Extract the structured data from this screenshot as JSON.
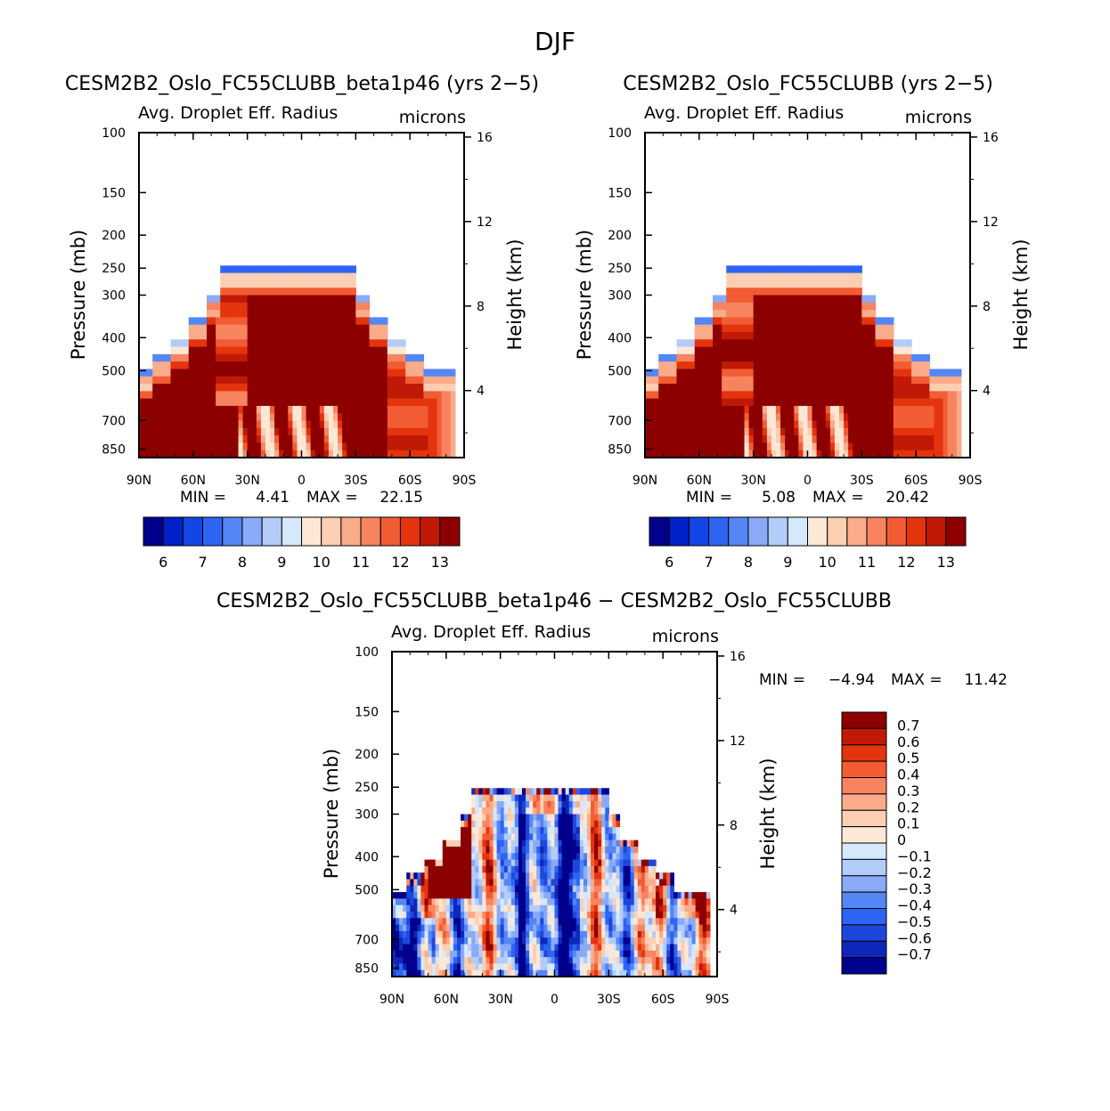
{
  "page": {
    "title": "DJF"
  },
  "colors": {
    "abs_palette": [
      "#00008c",
      "#0020c8",
      "#1446e6",
      "#2e64f4",
      "#5586f6",
      "#8aaaf8",
      "#b4ccfa",
      "#d6e8fc",
      "#fde8d6",
      "#fccfb2",
      "#faab8a",
      "#f7845f",
      "#f25c34",
      "#e4340e",
      "#c01a06",
      "#8c0000"
    ],
    "diff_palette": [
      "#00008c",
      "#0d28b8",
      "#1f46dc",
      "#2e64f4",
      "#5586f6",
      "#8aaaf8",
      "#b4ccfa",
      "#d6e8fc",
      "#fde8d6",
      "#fccfb2",
      "#faab8a",
      "#f7845f",
      "#f25c34",
      "#e4340e",
      "#c01a06",
      "#8c0000"
    ]
  },
  "chart_data": [
    {
      "type": "heatmap",
      "id": "top-left",
      "title": "CESM2B2_Oslo_FC55CLUBB_beta1p46 (yrs 2−5)",
      "subtitle_left": "Avg. Droplet Eff. Radius",
      "subtitle_right": "microns",
      "ylabel": "Pressure (mb)",
      "ylabel_right": "Height (km)",
      "x_ticks": [
        "90N",
        "60N",
        "30N",
        "0",
        "30S",
        "60S",
        "90S"
      ],
      "y_ticks": [
        "100",
        "150",
        "200",
        "250",
        "300",
        "400",
        "500",
        "700",
        "850"
      ],
      "y_right_ticks": [
        "16",
        "12",
        "8",
        "4"
      ],
      "min_label": "MIN =",
      "min_value": "4.41",
      "max_label": "MAX =",
      "max_value": "22.15",
      "colorbar_labels": [
        "6",
        "7",
        "8",
        "9",
        "10",
        "11",
        "12",
        "13"
      ],
      "colorbar_orientation": "horizontal",
      "levels": [
        5.5,
        6,
        6.5,
        7,
        7.5,
        8,
        8.5,
        9,
        9.5,
        10,
        10.5,
        11,
        11.5,
        12,
        12.5,
        13
      ],
      "field_description": "large saturated region (>13) in mid-troposphere tropics-subtropics, cloud top decreasing to blue (6-9) near 250mb, lighter values near south pole lower levels"
    },
    {
      "type": "heatmap",
      "id": "top-right",
      "title": "CESM2B2_Oslo_FC55CLUBB (yrs 2−5)",
      "subtitle_left": "Avg. Droplet Eff. Radius",
      "subtitle_right": "microns",
      "ylabel": "Pressure (mb)",
      "ylabel_right": "Height (km)",
      "x_ticks": [
        "90N",
        "60N",
        "30N",
        "0",
        "30S",
        "60S",
        "90S"
      ],
      "y_ticks": [
        "100",
        "150",
        "200",
        "250",
        "300",
        "400",
        "500",
        "700",
        "850"
      ],
      "y_right_ticks": [
        "16",
        "12",
        "8",
        "4"
      ],
      "min_label": "MIN =",
      "min_value": "5.08",
      "max_label": "MAX =",
      "max_value": "20.42",
      "colorbar_labels": [
        "6",
        "7",
        "8",
        "9",
        "10",
        "11",
        "12",
        "13"
      ],
      "colorbar_orientation": "horizontal",
      "levels": [
        5.5,
        6,
        6.5,
        7,
        7.5,
        8,
        8.5,
        9,
        9.5,
        10,
        10.5,
        11,
        11.5,
        12,
        12.5,
        13
      ]
    },
    {
      "type": "heatmap",
      "id": "bottom",
      "title": "CESM2B2_Oslo_FC55CLUBB_beta1p46 − CESM2B2_Oslo_FC55CLUBB",
      "subtitle_left": "Avg. Droplet Eff. Radius",
      "subtitle_right": "microns",
      "ylabel": "Pressure (mb)",
      "ylabel_right": "Height (km)",
      "x_ticks": [
        "90N",
        "60N",
        "30N",
        "0",
        "30S",
        "60S",
        "90S"
      ],
      "y_ticks": [
        "100",
        "150",
        "200",
        "250",
        "300",
        "400",
        "500",
        "700",
        "850"
      ],
      "y_right_ticks": [
        "16",
        "12",
        "8",
        "4"
      ],
      "min_label": "MIN =",
      "min_value": "−4.94",
      "max_label": "MAX =",
      "max_value": "11.42",
      "colorbar_labels": [
        "0.7",
        "0.6",
        "0.5",
        "0.4",
        "0.3",
        "0.2",
        "0.1",
        "0",
        "−0.1",
        "−0.2",
        "−0.3",
        "−0.4",
        "−0.5",
        "−0.6",
        "−0.7"
      ],
      "colorbar_orientation": "vertical",
      "levels": [
        -0.7,
        -0.6,
        -0.5,
        -0.4,
        -0.3,
        -0.2,
        -0.1,
        0,
        0.1,
        0.2,
        0.3,
        0.4,
        0.5,
        0.6,
        0.7
      ]
    }
  ]
}
